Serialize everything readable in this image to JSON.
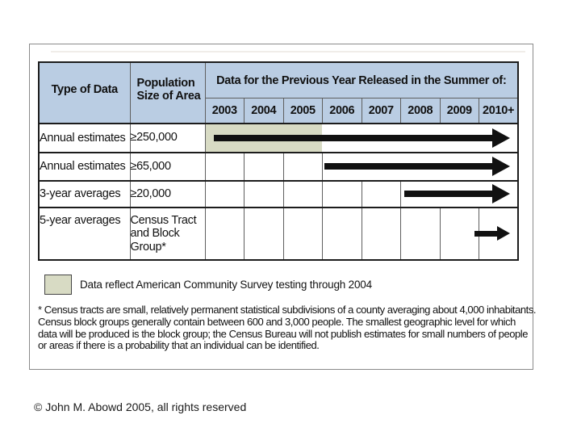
{
  "table": {
    "col1_header": "Type of Data",
    "col2_header": "Population Size of Area",
    "span_header": "Data for the Previous Year Released in the Summer of:",
    "years": [
      "2003",
      "2004",
      "2005",
      "2006",
      "2007",
      "2008",
      "2009",
      "2010+"
    ],
    "rows": [
      {
        "type": "Annual estimates",
        "size": "≥250,000",
        "arrow_start_year": "2003",
        "arrow_end_year": "2010+",
        "shaded_years": "2003–2005"
      },
      {
        "type": "Annual estimates",
        "size": "≥65,000",
        "arrow_start_year": "2006",
        "arrow_end_year": "2010+"
      },
      {
        "type": "3-year averages",
        "size": "≥20,000",
        "arrow_start_year": "2008",
        "arrow_end_year": "2010+"
      },
      {
        "type": "5-year averages",
        "size": "Census Tract and Block Group*",
        "arrow_start_year": "2010+",
        "arrow_end_year": "2010+"
      }
    ]
  },
  "legend": {
    "label": "Data reflect American Community Survey testing through 2004"
  },
  "footnote_lines": [
    "*  Census tracts are small, relatively permanent statistical subdivisions of a county averaging about 4,000 inhabitants.",
    "Census block groups generally contain between 600 and 3,000 people.  The smallest geographic level for which",
    "data will be produced is the block group; the Census Bureau will not publish estimates for small numbers of people",
    "or areas if there is a probability that an individual can be identified."
  ],
  "copyright": "© John M. Abowd 2005, all rights reserved",
  "colors": {
    "header_blue": "#bacde3",
    "shade_olive": "#d8dbc4",
    "arrow_black": "#111111"
  }
}
